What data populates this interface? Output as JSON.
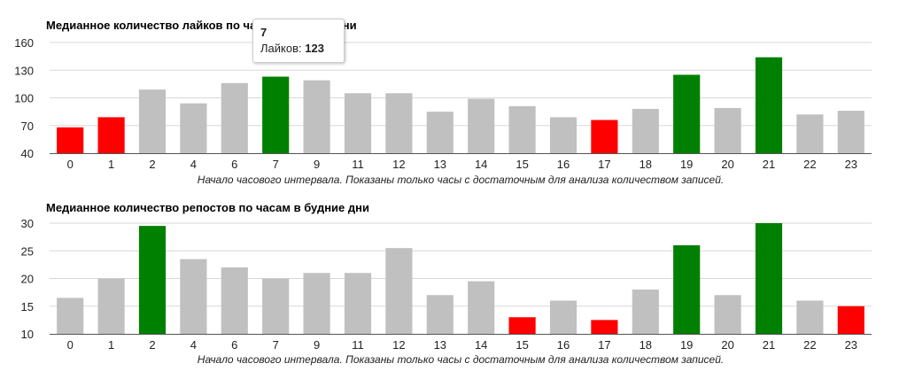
{
  "colors": {
    "neutral": "#c0c0c0",
    "high": "#008000",
    "low": "#ff0000",
    "grid": "#d8d8d8",
    "axis": "#555555"
  },
  "tooltip": {
    "title": "7",
    "label": "Лайков:",
    "value": "123"
  },
  "chart_data": [
    {
      "type": "bar",
      "title": "Медианное количество лайков по часам в будние дни",
      "xlabel": "Начало часового интервала. Показаны только часы с достаточным для анализа количеством записей.",
      "ylabel": "",
      "ylim": [
        40,
        160
      ],
      "yticks": [
        40,
        70,
        100,
        130,
        160
      ],
      "grid": true,
      "categories": [
        "0",
        "1",
        "2",
        "4",
        "6",
        "7",
        "9",
        "11",
        "12",
        "13",
        "14",
        "15",
        "16",
        "17",
        "18",
        "19",
        "20",
        "21",
        "22",
        "23"
      ],
      "values": [
        68,
        79,
        109,
        94,
        116,
        123,
        119,
        105,
        105,
        85,
        99,
        91,
        79,
        76,
        88,
        125,
        89,
        144,
        82,
        86
      ],
      "status": [
        "low",
        "low",
        "neutral",
        "neutral",
        "neutral",
        "high",
        "neutral",
        "neutral",
        "neutral",
        "neutral",
        "neutral",
        "neutral",
        "neutral",
        "low",
        "neutral",
        "high",
        "neutral",
        "high",
        "neutral",
        "neutral"
      ]
    },
    {
      "type": "bar",
      "title": "Медианное количество репостов по часам в будние дни",
      "xlabel": "Начало часового интервала. Показаны только часы с достаточным для анализа количеством записей.",
      "ylabel": "",
      "ylim": [
        10,
        30
      ],
      "yticks": [
        10,
        15,
        20,
        25,
        30
      ],
      "grid": true,
      "categories": [
        "0",
        "1",
        "2",
        "4",
        "6",
        "7",
        "9",
        "11",
        "12",
        "13",
        "14",
        "15",
        "16",
        "17",
        "18",
        "19",
        "20",
        "21",
        "22",
        "23"
      ],
      "values": [
        16.5,
        20,
        29.5,
        23.5,
        22,
        20,
        21,
        21,
        25.5,
        17,
        19.5,
        13,
        16,
        12.5,
        18,
        26,
        17,
        30,
        16,
        15
      ],
      "status": [
        "neutral",
        "neutral",
        "high",
        "neutral",
        "neutral",
        "neutral",
        "neutral",
        "neutral",
        "neutral",
        "neutral",
        "neutral",
        "low",
        "neutral",
        "low",
        "neutral",
        "high",
        "neutral",
        "high",
        "neutral",
        "low"
      ]
    }
  ]
}
